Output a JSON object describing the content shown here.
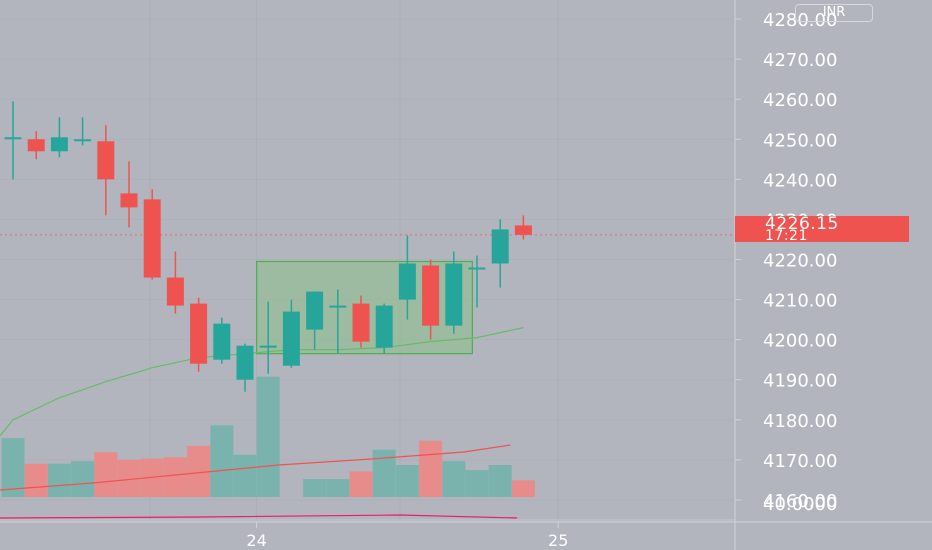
{
  "chart_data": {
    "type": "candlestick",
    "currency": "INR",
    "x_tick_labels": [
      {
        "label": "24",
        "index": 10.5
      },
      {
        "label": "25",
        "index": 23.5
      }
    ],
    "y_axis": {
      "range": [
        4155,
        4284
      ],
      "ticks": [
        4160,
        4170,
        4180,
        4190,
        4200,
        4210,
        4220,
        4230,
        4240,
        4250,
        4260,
        4270,
        4280
      ],
      "tick_labels": [
        "4160.00",
        "4170.00",
        "4180.00",
        "4190.00",
        "4200.00",
        "4210.00",
        "4220.00",
        "4230.00",
        "4240.00",
        "4250.00",
        "4260.00",
        "4270.00",
        "4280.00"
      ]
    },
    "last_price": "4226.15",
    "countdown": "17:21",
    "candles": [
      {
        "o": 4250.5,
        "h": 4259.5,
        "l": 4240,
        "c": 4250.5,
        "vol": 0.46
      },
      {
        "o": 4250,
        "h": 4252,
        "l": 4245,
        "c": 4247,
        "vol": 0.26
      },
      {
        "o": 4247,
        "h": 4255.5,
        "l": 4245.5,
        "c": 4250.5,
        "vol": 0.26
      },
      {
        "o": 4250,
        "h": 4255.5,
        "l": 4248.5,
        "c": 4250,
        "vol": 0.28
      },
      {
        "o": 4249.5,
        "h": 4253.5,
        "l": 4231,
        "c": 4240,
        "vol": 0.35
      },
      {
        "o": 4236.5,
        "h": 4244.5,
        "l": 4228,
        "c": 4233,
        "vol": 0.29
      },
      {
        "o": 4235,
        "h": 4237.5,
        "l": 4215,
        "c": 4215.5,
        "vol": 0.3
      },
      {
        "o": 4215.5,
        "h": 4222,
        "l": 4206.5,
        "c": 4208.5,
        "vol": 0.31
      },
      {
        "o": 4209,
        "h": 4210.5,
        "l": 4192,
        "c": 4194,
        "vol": 0.4
      },
      {
        "o": 4195,
        "h": 4205.5,
        "l": 4194,
        "c": 4204,
        "vol": 0.56
      },
      {
        "o": 4190,
        "h": 4199,
        "l": 4187,
        "c": 4198.5,
        "vol": 0.33
      },
      {
        "o": 4198,
        "h": 4209.5,
        "l": 4191.5,
        "c": 4198.5,
        "vol": 0.94
      },
      {
        "o": 4193.5,
        "h": 4210,
        "l": 4193,
        "c": 4207,
        "vol": 0.0
      },
      {
        "o": 4202.5,
        "h": 4212,
        "l": 4197.5,
        "c": 4212,
        "vol": 0.14
      },
      {
        "o": 4208.5,
        "h": 4212.5,
        "l": 4196.5,
        "c": 4208.5,
        "vol": 0.14
      },
      {
        "o": 4209,
        "h": 4211,
        "l": 4198,
        "c": 4199.5,
        "vol": 0.2
      },
      {
        "o": 4198,
        "h": 4209,
        "l": 4196.5,
        "c": 4208.5,
        "vol": 0.37
      },
      {
        "o": 4210,
        "h": 4226,
        "l": 4205,
        "c": 4219,
        "vol": 0.25
      },
      {
        "o": 4218.5,
        "h": 4220,
        "l": 4200,
        "c": 4203.5,
        "vol": 0.44
      },
      {
        "o": 4203.5,
        "h": 4222,
        "l": 4201.5,
        "c": 4219,
        "vol": 0.28
      },
      {
        "o": 4218,
        "h": 4221,
        "l": 4208,
        "c": 4218,
        "vol": 0.21
      },
      {
        "o": 4219,
        "h": 4230,
        "l": 4213,
        "c": 4227.5,
        "vol": 0.25
      },
      {
        "o": 4228.5,
        "h": 4231,
        "l": 4225,
        "c": 4226.15,
        "vol": 0.13
      }
    ],
    "rectangle": {
      "from_index": 10.5,
      "to_index": 19.8,
      "top": 4219.5,
      "bottom": 4196.5
    },
    "moving_average": [
      {
        "i": 0,
        "v": 4180
      },
      {
        "i": 2,
        "v": 4185.5
      },
      {
        "i": 4,
        "v": 4189.5
      },
      {
        "i": 6,
        "v": 4193
      },
      {
        "i": 8,
        "v": 4195.5
      },
      {
        "i": 10,
        "v": 4196.5
      },
      {
        "i": 12,
        "v": 4197.5
      },
      {
        "i": 14,
        "v": 4197.5
      },
      {
        "i": 16,
        "v": 4198
      },
      {
        "i": 18,
        "v": 4199.5
      },
      {
        "i": 20,
        "v": 4200.5
      },
      {
        "i": 22,
        "v": 4203
      }
    ],
    "indicator_value": "40.0000",
    "colors": {
      "background": "#b2b5be",
      "up": "#26a69a",
      "down": "#ef5350",
      "up_volume": "#7ab3ad",
      "down_volume": "#e78b8b",
      "moving_average": "#66bb6a",
      "volume_average": "#ef5350",
      "indicator_line": "#e91e63",
      "rectangle_fill": "#8ec08e",
      "rectangle_border": "#4caf50",
      "grid": "#a5a8b1",
      "axis_text": "#ffffff"
    }
  }
}
